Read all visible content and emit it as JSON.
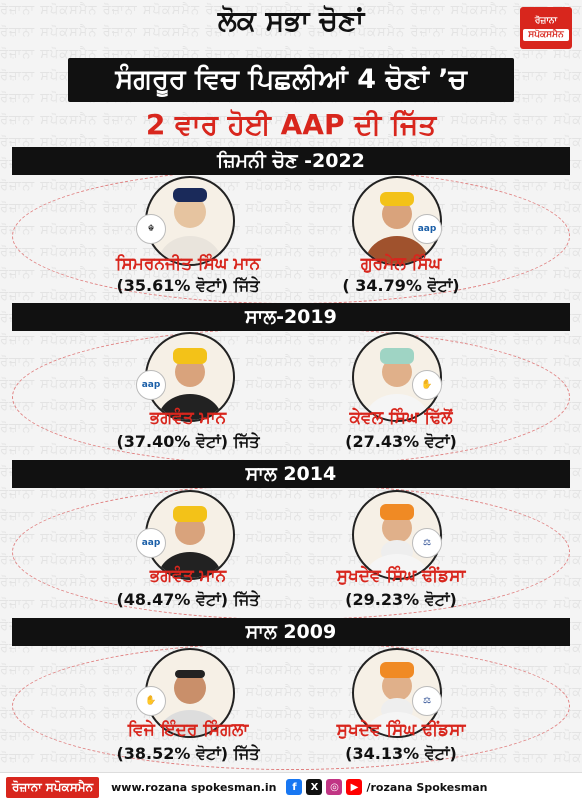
{
  "header": {
    "title_line1": "ਲੋਕ ਸਭਾ ਚੋਣਾਂ",
    "title_line2": "ਸੰਗਰੂਰ ਵਿਚ ਪਿਛਲੀਆਂ 4 ਚੋਣਾਂ ’ਚ",
    "title_line3": "2 ਵਾਰ ਹੋਈ AAP ਦੀ ਜਿੱਤ",
    "logo_line1": "ਰੋਜ਼ਾਨਾ",
    "logo_line2": "ਸਪੋਕਸਮੈਨ"
  },
  "sections": [
    {
      "title": "ਜ਼ਿਮਨੀ ਚੋਣ -2022",
      "left": {
        "name": "ਸਿਮਰਨਜੀਤ ਸਿੰਘ ਮਾਨ",
        "votes": "(35.61% ਵੋਟਾਂ) ਜਿੱਤੇ"
      },
      "right": {
        "name": "ਗੁਰਮੇਲ ਸਿੰਘ",
        "votes": "( 34.79% ਵੋਟਾਂ)"
      }
    },
    {
      "title": "ਸਾਲ-2019",
      "left": {
        "name": "ਭਗਵੰਤ ਮਾਨ",
        "votes": "(37.40% ਵੋਟਾਂ) ਜਿੱਤੇ"
      },
      "right": {
        "name": "ਕੇਵਲ ਸਿੰਘ ਢਿੱਲੋਂ",
        "votes": "(27.43% ਵੋਟਾਂ)"
      }
    },
    {
      "title": "ਸਾਲ 2014",
      "left": {
        "name": "ਭਗਵੰਤ ਮਾਨ",
        "votes": "(48.47% ਵੋਟਾਂ) ਜਿੱਤੇ"
      },
      "right": {
        "name": "ਸੁਖਦੇਵ ਸਿੰਘ ਢੀਂਡਸਾ",
        "votes": "(29.23% ਵੋਟਾਂ)"
      }
    },
    {
      "title": "ਸਾਲ 2009",
      "left": {
        "name": "ਵਿਜੇ ਇੰਦਰ ਸਿੰਗਲਾ",
        "votes": "(38.52% ਵੋਟਾਂ) ਜਿੱਤੇ"
      },
      "right": {
        "name": "ਸੁਖਦੇਵ ਸਿੰਘ ਢੀਂਡਸਾ",
        "votes": "(34.13% ਵੋਟਾਂ)"
      }
    }
  ],
  "footer": {
    "logo": "ਰੋਜ਼ਾਨਾ ਸਪੋਕਸਮੈਨ",
    "website": "www.rozana spokesman.in",
    "handle": "/rozana Spokesman"
  },
  "watermark": "ਰੋਜ਼ਾਨਾ ਸਪੋਕਸਮੈਨ",
  "colors": {
    "accent": "#d8261d",
    "dark": "#111111"
  }
}
